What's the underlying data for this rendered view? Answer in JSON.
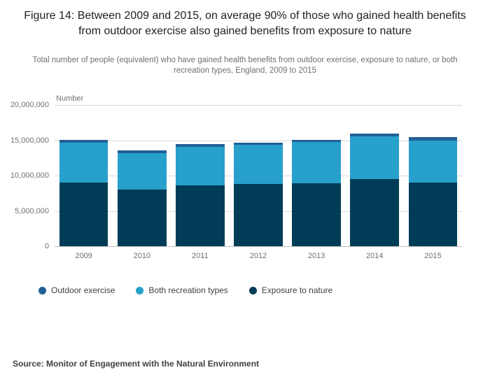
{
  "chart_data": {
    "type": "bar",
    "stacked": true,
    "title": "Figure 14: Between 2009 and 2015, on average 90% of those who gained health benefits from outdoor exercise also gained benefits from exposure to nature",
    "subtitle": "Total number of people (equivalent) who have gained health benefits from outdoor exercise, exposure to nature, or both recreation types, England, 2009 to 2015",
    "ylabel": "Number",
    "xlabel": "",
    "ylim": [
      0,
      20000000
    ],
    "yticks": [
      0,
      5000000,
      10000000,
      15000000,
      20000000
    ],
    "ytick_labels": [
      "0",
      "5,000,000",
      "10,000,000",
      "15,000,000",
      "20,000,000"
    ],
    "categories": [
      "2009",
      "2010",
      "2011",
      "2012",
      "2013",
      "2014",
      "2015"
    ],
    "series": [
      {
        "name": "Exposure to nature",
        "color": "#003c57",
        "values": [
          9000000,
          8000000,
          8600000,
          8800000,
          8900000,
          9500000,
          9000000
        ]
      },
      {
        "name": "Both recreation types",
        "color": "#27a0cc",
        "values": [
          5700000,
          5200000,
          5500000,
          5600000,
          5900000,
          6000000,
          6000000
        ]
      },
      {
        "name": "Outdoor exercise",
        "color": "#206095",
        "values": [
          400000,
          400000,
          350000,
          300000,
          300000,
          400000,
          400000
        ]
      }
    ],
    "legend": [
      {
        "label": "Outdoor exercise",
        "color": "#206095"
      },
      {
        "label": "Both recreation types",
        "color": "#27a0cc"
      },
      {
        "label": "Exposure to nature",
        "color": "#003c57"
      }
    ],
    "legend_position": "bottom",
    "grid": true
  },
  "source": {
    "label": "Source: Monitor of Engagement with the Natural Environment"
  },
  "colors": {
    "background": "#ffffff",
    "gridline": "#d9d9d9",
    "axis_text": "#707071",
    "title_text": "#222222",
    "source_text": "#414042"
  }
}
